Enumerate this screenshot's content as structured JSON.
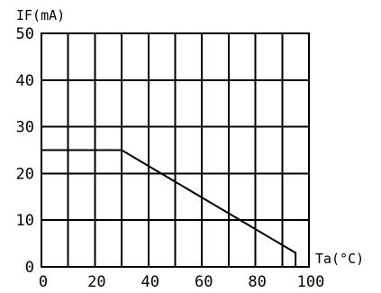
{
  "chart_data": {
    "type": "line",
    "ylabel": "IF(mA)",
    "xlabel": "Ta(°C)",
    "xlim": [
      0,
      100
    ],
    "ylim": [
      0,
      50
    ],
    "xticks": [
      0,
      20,
      40,
      60,
      80,
      100
    ],
    "yticks": [
      0,
      10,
      20,
      30,
      40,
      50
    ],
    "x_grid_step": 10,
    "y_grid_step": 10,
    "grid": true,
    "series": [
      {
        "x": [
          0,
          30,
          95,
          95
        ],
        "y": [
          25,
          25,
          3,
          0
        ]
      }
    ]
  }
}
